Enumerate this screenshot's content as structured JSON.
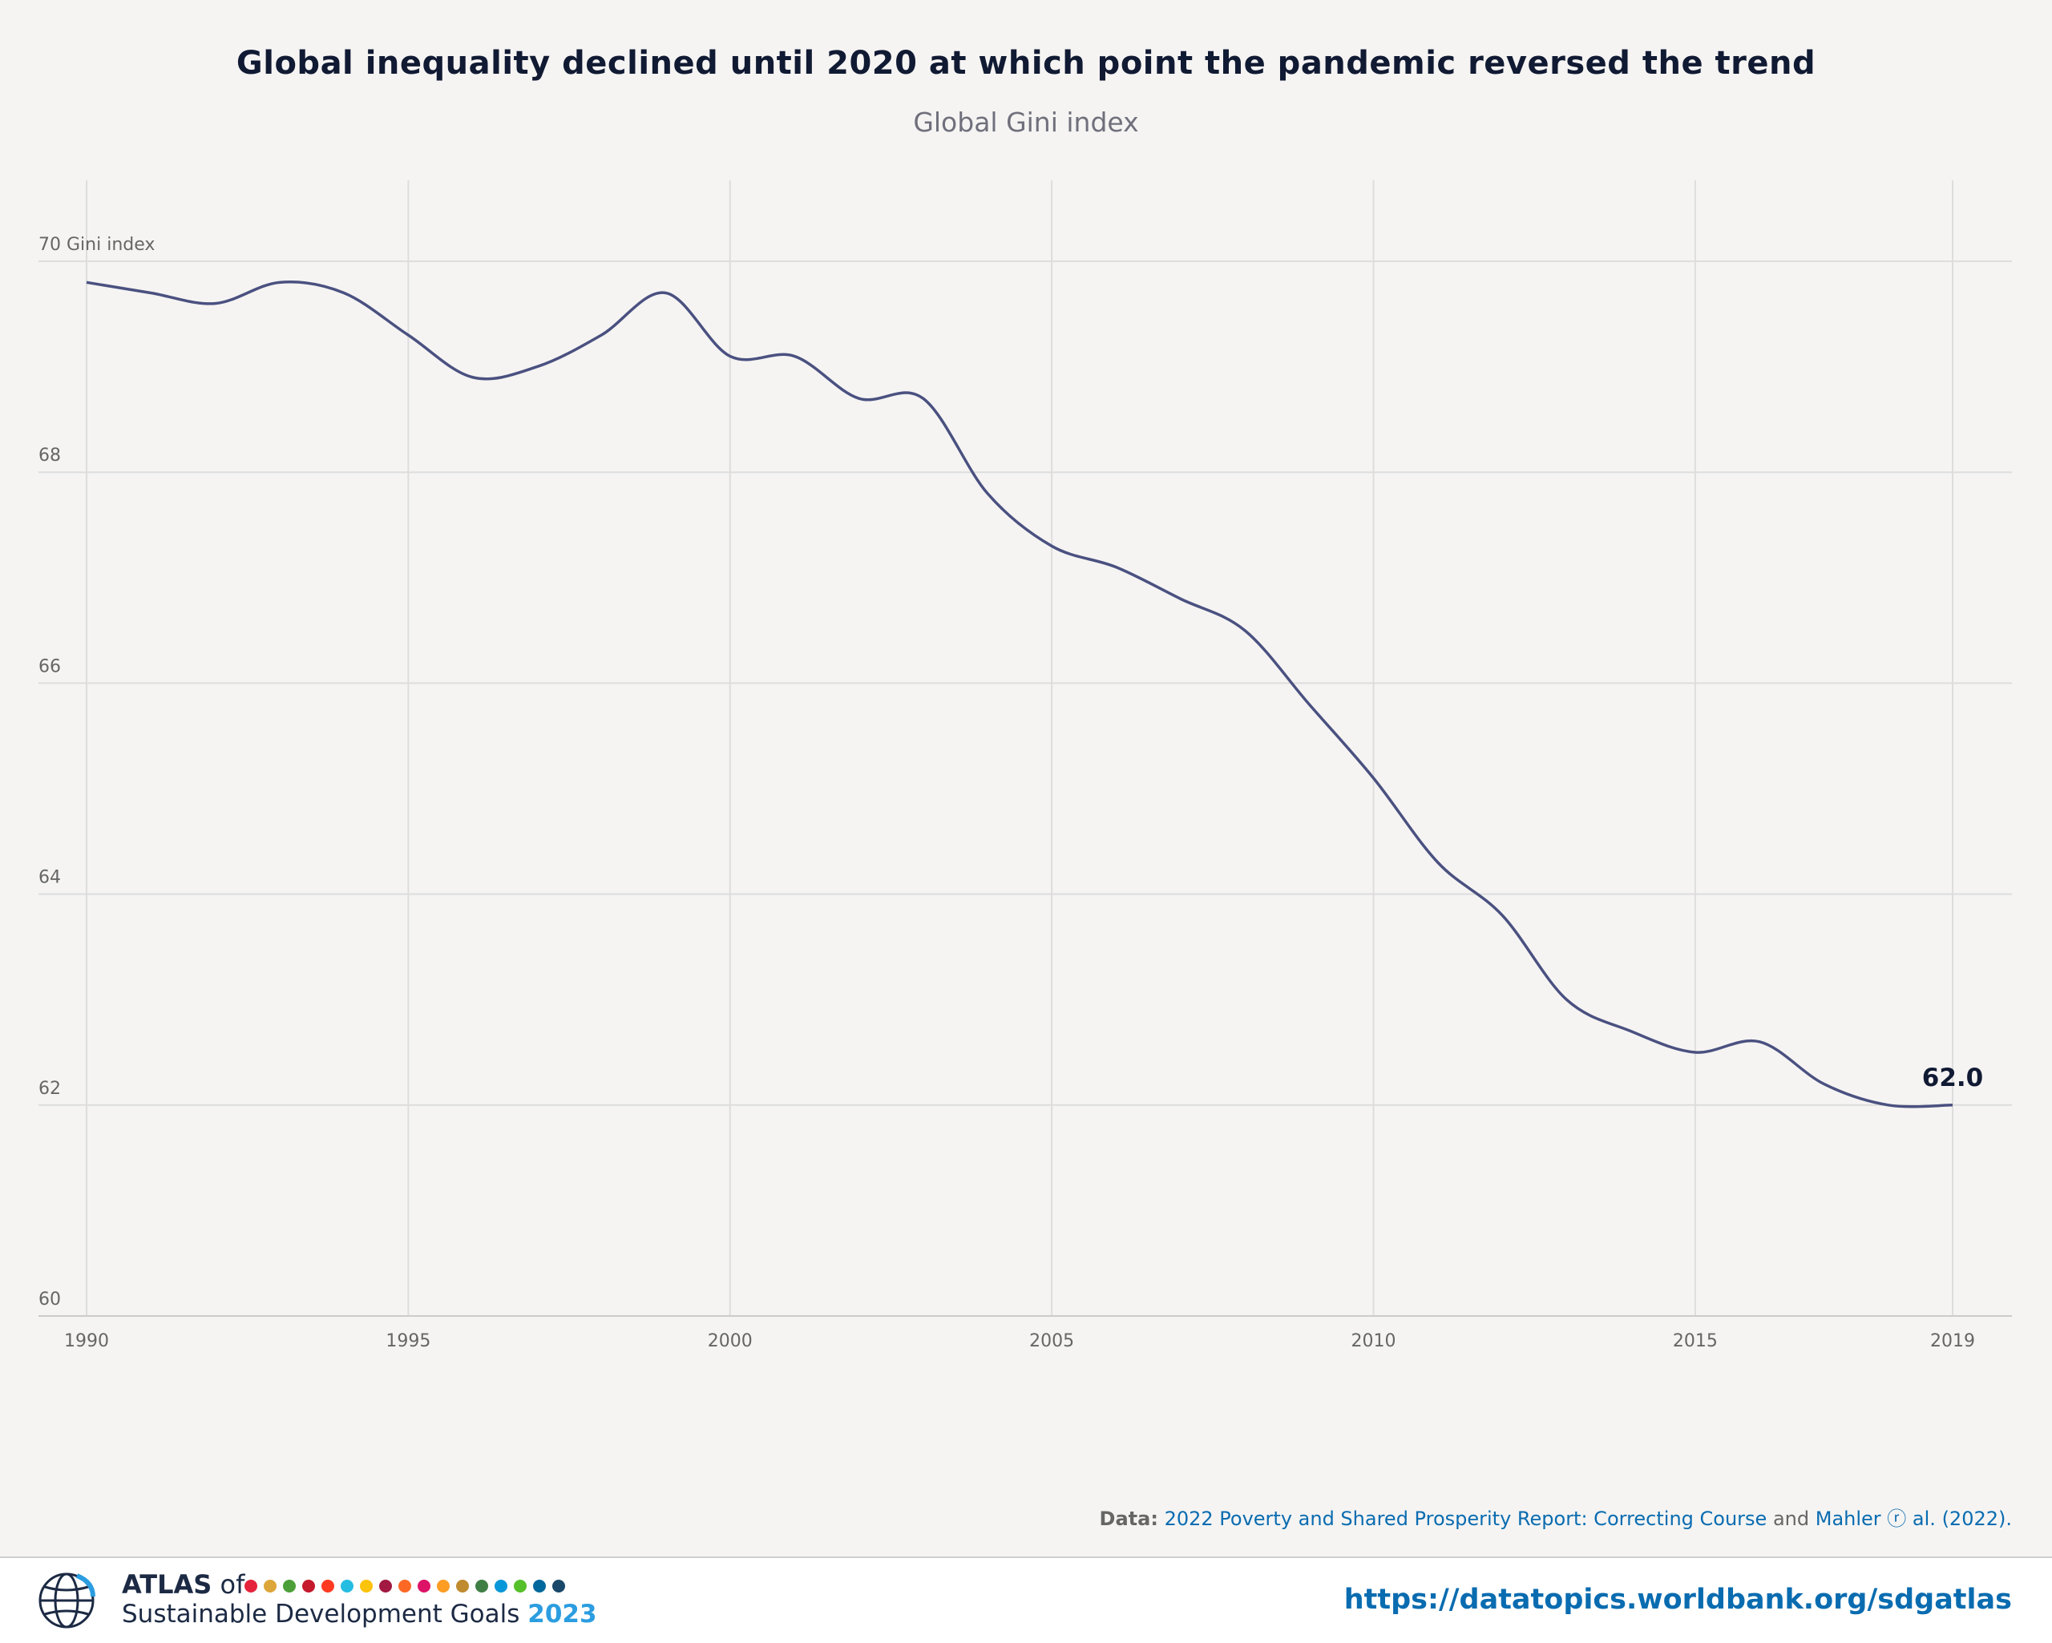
{
  "title": "Global inequality declined until 2020 at which point the pandemic reversed the trend",
  "subtitle": "Global Gini index",
  "chart_data": {
    "type": "line",
    "title": "Global inequality declined until 2020 at which point the pandemic reversed the trend",
    "subtitle": "Global Gini index",
    "ylabel": "Gini index",
    "xlim": [
      1990,
      2019
    ],
    "ylim": [
      60,
      70
    ],
    "x_ticks": [
      1990,
      1995,
      2000,
      2005,
      2010,
      2015,
      2019
    ],
    "y_ticks": [
      60,
      62,
      64,
      66,
      68,
      70
    ],
    "grid": true,
    "series": [
      {
        "color": "#4a5180",
        "x": [
          1990,
          1991,
          1992,
          1993,
          1994,
          1995,
          1996,
          1997,
          1998,
          1999,
          2000,
          2001,
          2002,
          2003,
          2004,
          2005,
          2006,
          2007,
          2008,
          2009,
          2010,
          2011,
          2012,
          2013,
          2014,
          2015,
          2016,
          2017,
          2018,
          2019
        ],
        "values": [
          69.8,
          69.7,
          69.6,
          69.8,
          69.7,
          69.3,
          68.9,
          69.0,
          69.3,
          69.7,
          69.1,
          69.1,
          68.7,
          68.7,
          67.8,
          67.3,
          67.1,
          66.8,
          66.5,
          65.8,
          65.1,
          64.3,
          63.8,
          63.0,
          62.7,
          62.5,
          62.6,
          62.2,
          62.0,
          62.0
        ]
      }
    ],
    "annotations": [
      {
        "x": 2019,
        "y": 62.0,
        "text": "62.0"
      }
    ]
  },
  "source": {
    "prefix": "Data:",
    "link1": "2022 Poverty and Shared Prosperity Report: Correcting Course",
    "and": "and",
    "link2": "Mahler ⓡ al. (2022)."
  },
  "footer": {
    "atlas": "ATLAS",
    "of": "of",
    "line2": "Sustainable Development Goals",
    "year": "2023",
    "url": "https://datatopics.worldbank.org/sdgatlas",
    "sdg_colors": [
      "#e5243b",
      "#dda63a",
      "#4c9f38",
      "#c5192d",
      "#ff3a21",
      "#26bde2",
      "#fcc30b",
      "#a21942",
      "#fd6925",
      "#dd1367",
      "#fd9d24",
      "#bf8b2e",
      "#3f7e44",
      "#0a97d9",
      "#56c02b",
      "#00689d",
      "#19486a"
    ]
  }
}
